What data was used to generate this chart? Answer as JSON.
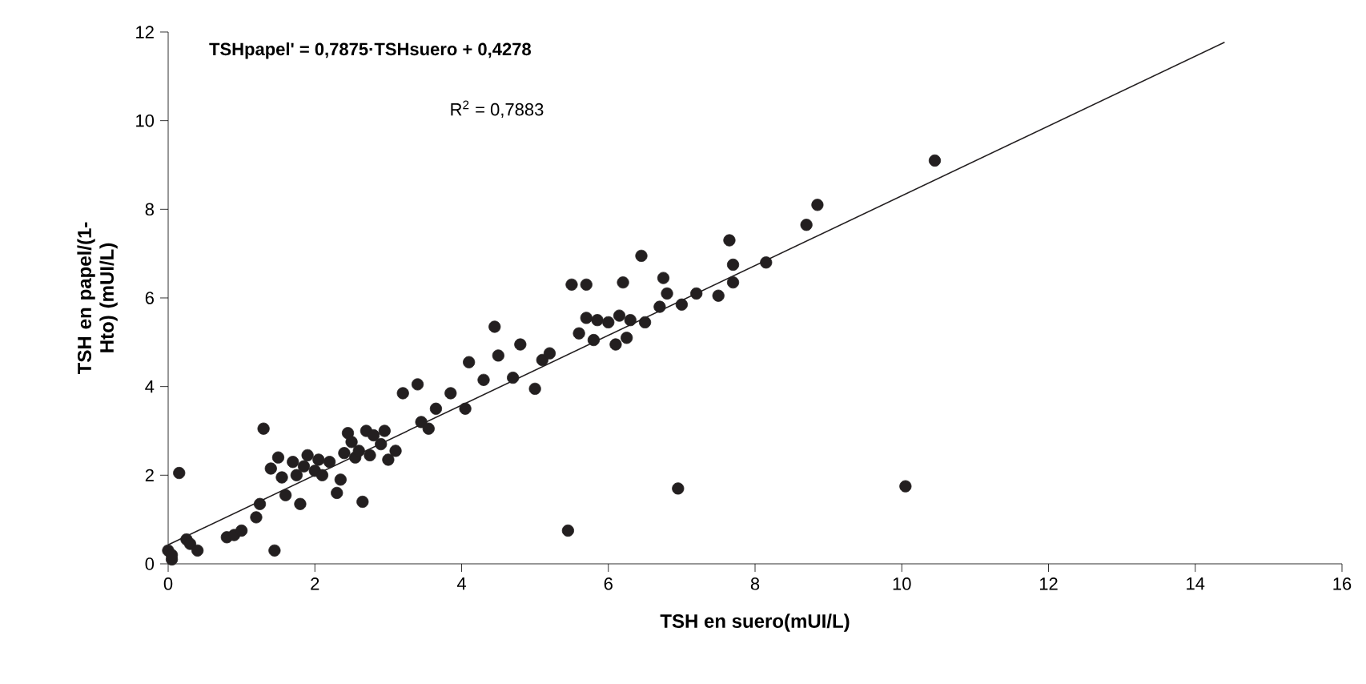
{
  "chart_data": {
    "type": "scatter",
    "xlabel": "TSH en suero(mUI/L)",
    "ylabel": "TSH en papel/(1-Hto) (mUI/L)",
    "annotations": [
      "TSHpapel' = 0,7875·TSHsuero + 0,4278",
      "R$^{2}$ = 0,7883"
    ],
    "xlim": [
      0,
      16
    ],
    "ylim": [
      0,
      12
    ],
    "xticks": [
      0,
      2,
      4,
      6,
      8,
      10,
      12,
      14,
      16
    ],
    "yticks": [
      0,
      2,
      4,
      6,
      8,
      10,
      12
    ],
    "grid": false,
    "series": [
      {
        "color": "#231f20",
        "marker": "circle",
        "x": [
          0.0,
          0.05,
          0.05,
          0.15,
          0.25,
          0.3,
          0.4,
          0.8,
          0.9,
          1.0,
          1.2,
          1.25,
          1.3,
          1.45,
          1.4,
          1.5,
          1.55,
          1.6,
          1.7,
          1.75,
          1.8,
          1.85,
          1.9,
          2.0,
          2.05,
          2.1,
          2.2,
          2.3,
          2.35,
          2.4,
          2.45,
          2.5,
          2.55,
          2.6,
          2.65,
          2.7,
          2.75,
          2.8,
          2.9,
          2.95,
          3.0,
          3.1,
          3.2,
          3.4,
          3.45,
          3.55,
          3.65,
          3.85,
          4.05,
          4.1,
          4.3,
          4.45,
          4.5,
          4.7,
          4.8,
          5.0,
          5.1,
          5.2,
          5.45,
          5.5,
          5.6,
          5.7,
          5.7,
          5.8,
          5.85,
          6.0,
          6.1,
          6.15,
          6.2,
          6.25,
          6.3,
          6.45,
          6.5,
          6.7,
          6.75,
          6.8,
          6.95,
          7.0,
          7.2,
          7.5,
          7.65,
          7.7,
          7.7,
          8.15,
          8.7,
          8.85,
          10.05,
          10.45
        ],
        "values": [
          0.3,
          0.1,
          0.2,
          2.05,
          0.55,
          0.45,
          0.3,
          0.6,
          0.65,
          0.75,
          1.05,
          1.35,
          3.05,
          0.3,
          2.15,
          2.4,
          1.95,
          1.55,
          2.3,
          2.0,
          1.35,
          2.2,
          2.45,
          2.1,
          2.35,
          2.0,
          2.3,
          1.6,
          1.9,
          2.5,
          2.95,
          2.75,
          2.4,
          2.55,
          1.4,
          3.0,
          2.45,
          2.9,
          2.7,
          3.0,
          2.35,
          2.55,
          3.85,
          4.05,
          3.2,
          3.05,
          3.5,
          3.85,
          3.5,
          4.55,
          4.15,
          5.35,
          4.7,
          4.2,
          4.95,
          3.95,
          4.6,
          4.75,
          0.75,
          6.3,
          5.2,
          6.3,
          5.55,
          5.05,
          5.5,
          5.45,
          4.95,
          5.6,
          6.35,
          5.1,
          5.5,
          6.95,
          5.45,
          5.8,
          6.45,
          6.1,
          1.7,
          5.85,
          6.1,
          6.05,
          7.3,
          6.35,
          6.75,
          6.8,
          7.65,
          8.1,
          1.75,
          9.1
        ]
      },
      {
        "type": "line",
        "color": "#231f20",
        "marker": "none",
        "line_style": "solid",
        "x": [
          0,
          14.4
        ],
        "values": [
          0.43,
          11.77
        ]
      }
    ]
  }
}
